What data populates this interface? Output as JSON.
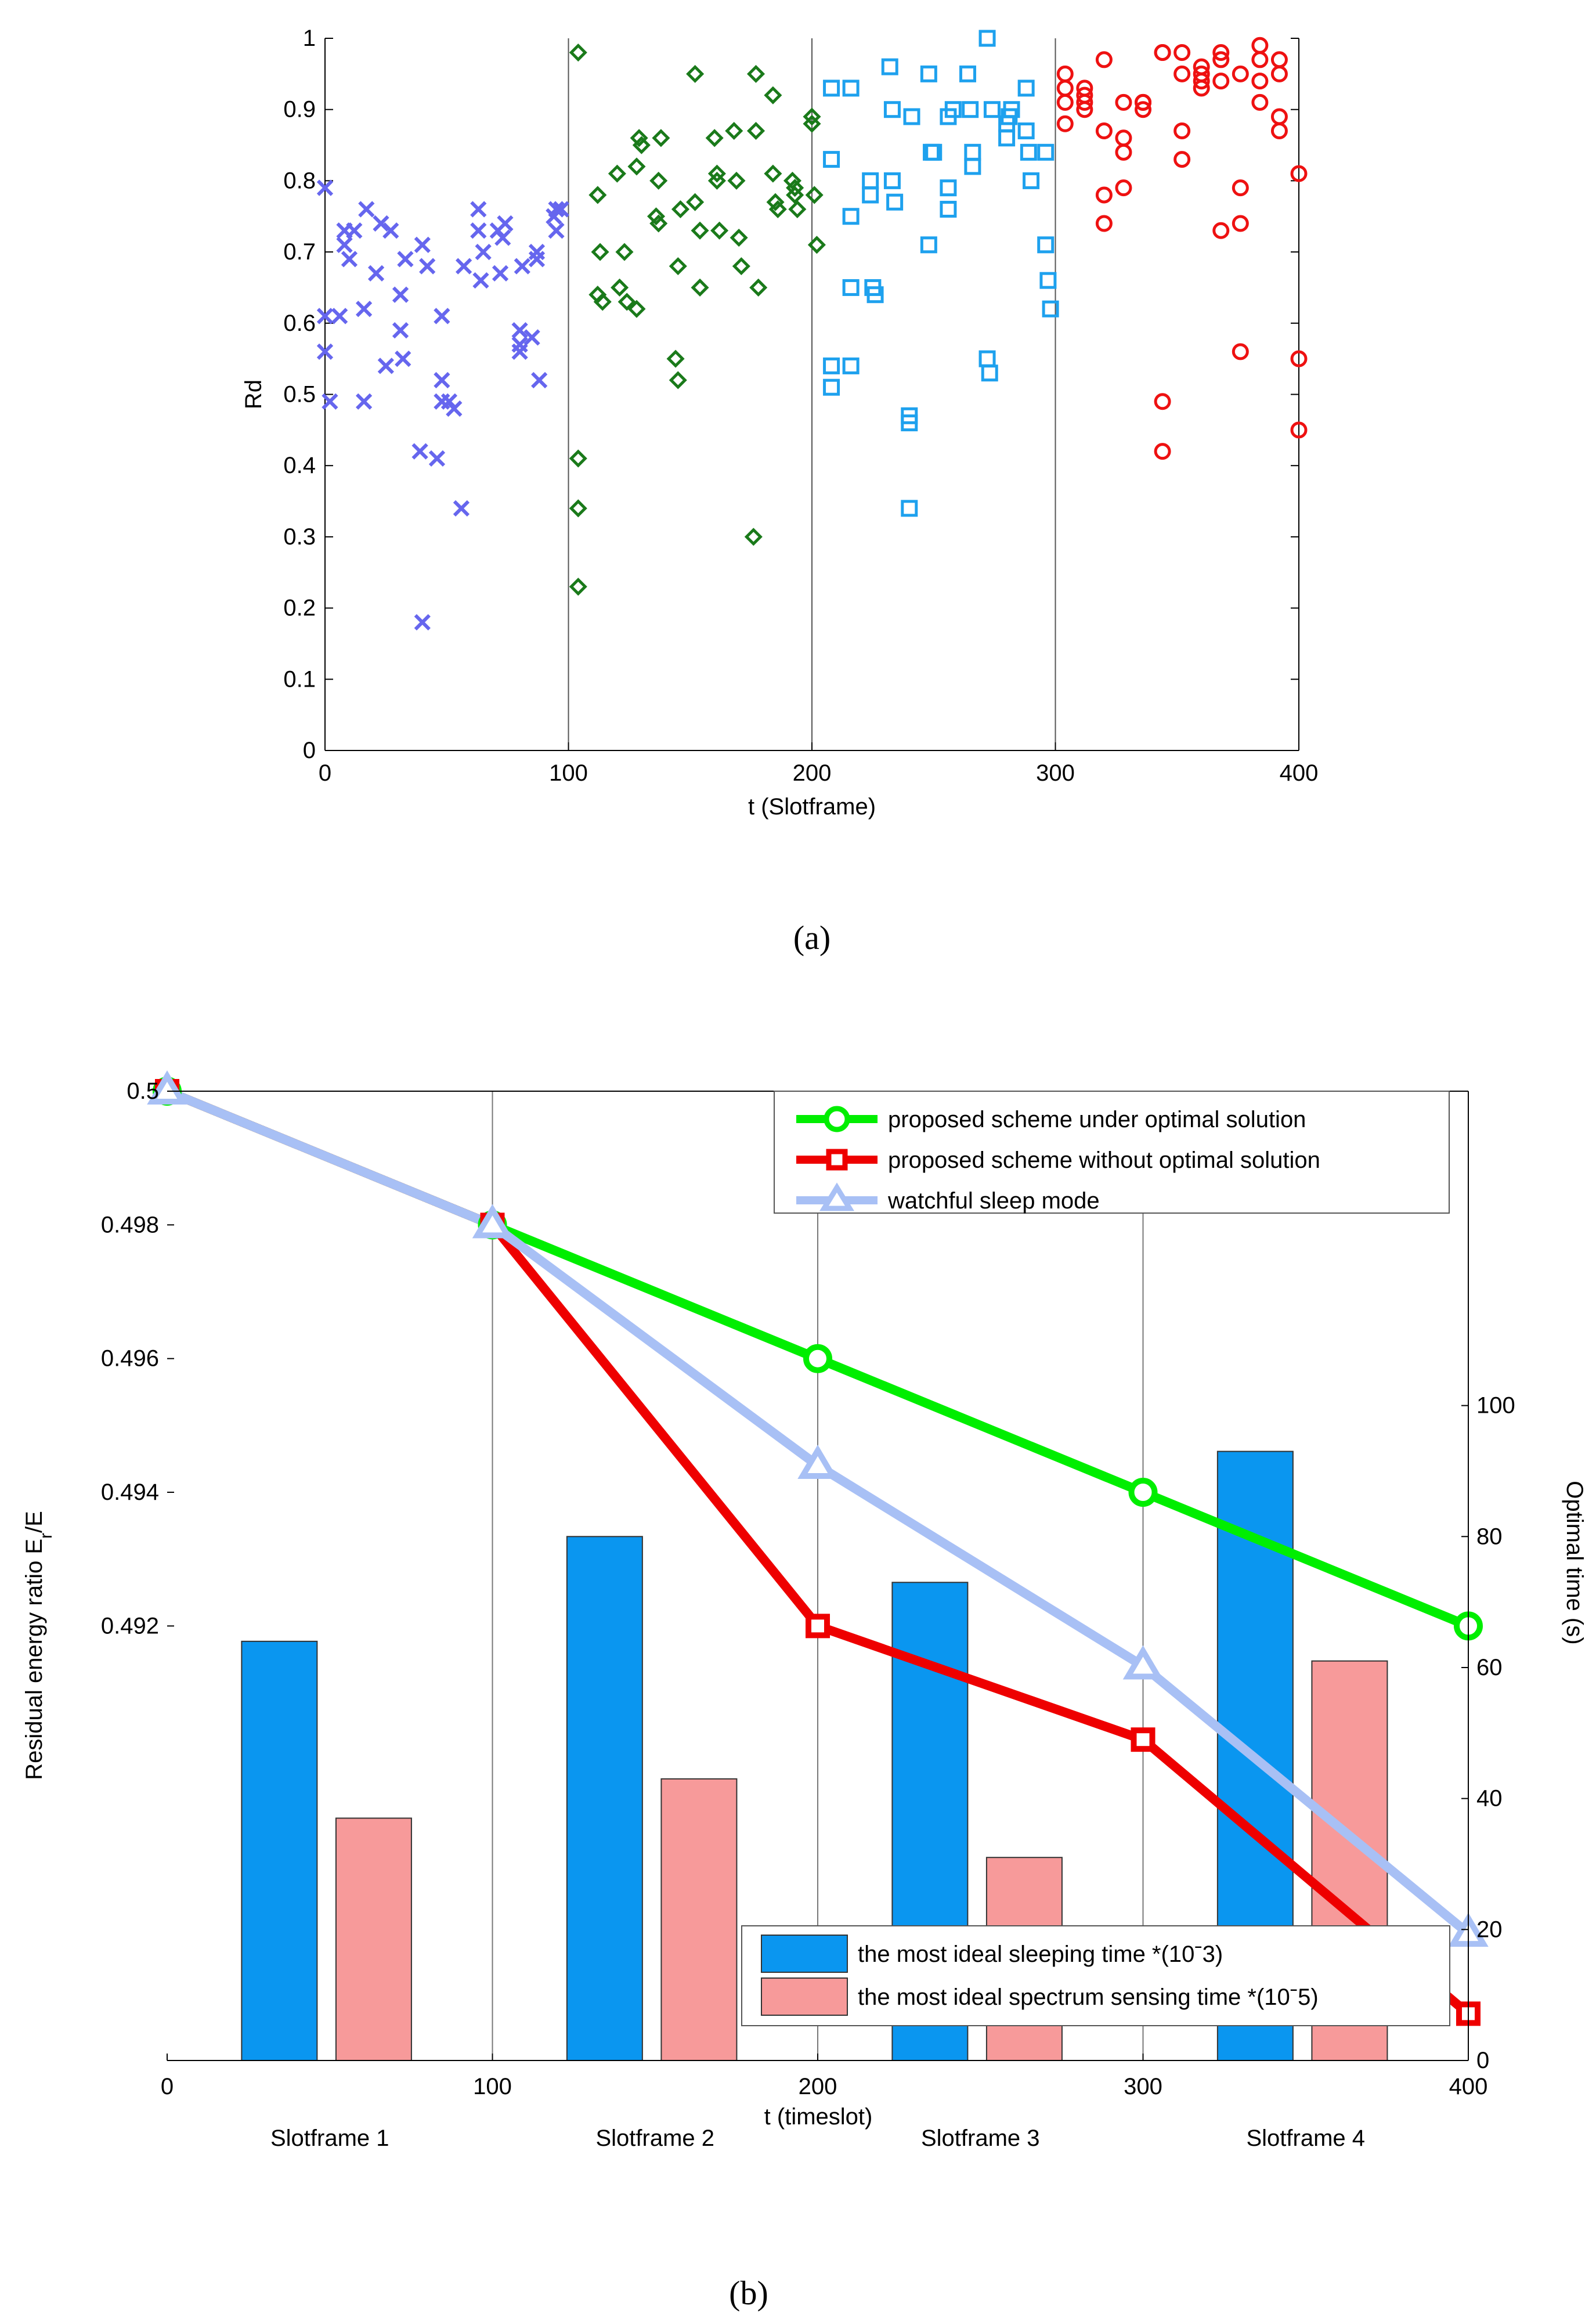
{
  "chart_data": [
    {
      "type": "scatter",
      "caption": "(a)",
      "xlabel": "t (Slotframe)",
      "ylabel": "Rd",
      "xlim": [
        0,
        400
      ],
      "ylim": [
        0,
        1
      ],
      "xticks": [
        0,
        100,
        200,
        300,
        400
      ],
      "yticks": [
        0,
        0.1,
        0.2,
        0.3,
        0.4,
        0.5,
        0.6,
        0.7,
        0.8,
        0.9,
        1
      ],
      "vertical_lines": [
        100,
        200,
        300,
        400
      ],
      "series": [
        {
          "color": "#6666ee",
          "marker": "x",
          "x": [
            0,
            0,
            0,
            2,
            6,
            8,
            8,
            10,
            12,
            16,
            16,
            17,
            21,
            23,
            25,
            27,
            31,
            31,
            32,
            33,
            39,
            40,
            40,
            42,
            46,
            48,
            48,
            48,
            51,
            53,
            56,
            57,
            63,
            63,
            64,
            65,
            71,
            72,
            73,
            74,
            80,
            80,
            80,
            81,
            85,
            87,
            87,
            88,
            94,
            95,
            95,
            97
          ],
          "y": [
            0.79,
            0.61,
            0.56,
            0.49,
            0.61,
            0.73,
            0.71,
            0.69,
            0.73,
            0.49,
            0.62,
            0.76,
            0.67,
            0.74,
            0.54,
            0.73,
            0.64,
            0.59,
            0.55,
            0.69,
            0.42,
            0.18,
            0.71,
            0.68,
            0.41,
            0.49,
            0.61,
            0.52,
            0.49,
            0.48,
            0.34,
            0.68,
            0.76,
            0.73,
            0.66,
            0.7,
            0.73,
            0.67,
            0.72,
            0.74,
            0.57,
            0.56,
            0.59,
            0.68,
            0.58,
            0.7,
            0.69,
            0.52,
            0.75,
            0.76,
            0.73,
            0.76
          ]
        },
        {
          "color": "#1a7a1a",
          "marker": "diamond",
          "x": [
            104,
            104,
            104,
            104,
            112,
            112,
            113,
            114,
            120,
            121,
            123,
            124,
            128,
            128,
            129,
            130,
            136,
            137,
            137,
            138,
            144,
            145,
            145,
            146,
            152,
            152,
            154,
            154,
            160,
            161,
            161,
            162,
            168,
            169,
            170,
            171,
            176,
            177,
            177,
            178,
            184,
            184,
            185,
            186,
            192,
            193,
            193,
            194,
            200,
            200,
            201,
            202
          ],
          "y": [
            0.98,
            0.41,
            0.34,
            0.23,
            0.78,
            0.64,
            0.7,
            0.63,
            0.81,
            0.65,
            0.7,
            0.63,
            0.62,
            0.82,
            0.86,
            0.85,
            0.75,
            0.74,
            0.8,
            0.86,
            0.55,
            0.52,
            0.68,
            0.76,
            0.95,
            0.77,
            0.73,
            0.65,
            0.86,
            0.8,
            0.81,
            0.73,
            0.87,
            0.8,
            0.72,
            0.68,
            0.3,
            0.95,
            0.87,
            0.65,
            0.92,
            0.81,
            0.77,
            0.76,
            0.8,
            0.79,
            0.78,
            0.76,
            0.89,
            0.88,
            0.78,
            0.71
          ]
        },
        {
          "color": "#1ea1ee",
          "marker": "square",
          "x": [
            208,
            208,
            208,
            208,
            216,
            216,
            216,
            216,
            224,
            224,
            225,
            226,
            232,
            233,
            233,
            234,
            240,
            240,
            240,
            241,
            248,
            248,
            249,
            250,
            256,
            256,
            256,
            258,
            264,
            265,
            266,
            266,
            272,
            272,
            273,
            274,
            280,
            280,
            281,
            282,
            288,
            288,
            289,
            290,
            296,
            296,
            297,
            298
          ],
          "y": [
            0.93,
            0.83,
            0.54,
            0.51,
            0.93,
            0.75,
            0.65,
            0.54,
            0.8,
            0.78,
            0.65,
            0.64,
            0.96,
            0.9,
            0.8,
            0.77,
            0.47,
            0.46,
            0.34,
            0.89,
            0.95,
            0.71,
            0.84,
            0.84,
            0.89,
            0.79,
            0.76,
            0.9,
            0.95,
            0.9,
            0.84,
            0.82,
            1.0,
            0.55,
            0.53,
            0.9,
            0.88,
            0.86,
            0.89,
            0.9,
            0.93,
            0.87,
            0.84,
            0.8,
            0.84,
            0.71,
            0.66,
            0.62
          ]
        },
        {
          "color": "#ee1111",
          "marker": "circle",
          "x": [
            304,
            304,
            304,
            304,
            312,
            312,
            312,
            312,
            320,
            320,
            320,
            320,
            328,
            328,
            328,
            328,
            336,
            336,
            336,
            336,
            344,
            344,
            344,
            344,
            352,
            352,
            352,
            352,
            360,
            360,
            360,
            360,
            368,
            368,
            368,
            368,
            376,
            376,
            376,
            376,
            384,
            384,
            384,
            384,
            392,
            392,
            392,
            392,
            400,
            400,
            400
          ],
          "y": [
            0.95,
            0.93,
            0.91,
            0.88,
            0.93,
            0.92,
            0.9,
            0.91,
            0.97,
            0.87,
            0.78,
            0.74,
            0.91,
            0.86,
            0.84,
            0.79,
            0.91,
            0.91,
            0.9,
            0.91,
            0.98,
            0.49,
            0.42,
            0.98,
            0.98,
            0.87,
            0.83,
            0.95,
            0.96,
            0.95,
            0.94,
            0.93,
            0.98,
            0.97,
            0.73,
            0.94,
            0.95,
            0.79,
            0.74,
            0.56,
            0.99,
            0.97,
            0.94,
            0.91,
            0.97,
            0.95,
            0.89,
            0.87,
            0.81,
            0.55,
            0.45
          ]
        }
      ]
    },
    {
      "type": "bar+line",
      "caption": "(b)",
      "xlabel": "t (timeslot)",
      "ylabel_left_parts": [
        "Residual energy ratio  E",
        "r",
        "/E"
      ],
      "ylabel_right": "Optimal time (s)",
      "xlim": [
        0,
        400
      ],
      "xticks": [
        0,
        100,
        200,
        300,
        400
      ],
      "yticks_left": [
        "0.5",
        "0.498",
        "0.496",
        "0.494",
        "0.492"
      ],
      "ylim_left": [
        0.4855,
        0.5
      ],
      "yticks_right": [
        0,
        20,
        40,
        60,
        80,
        100
      ],
      "ylim_right": [
        0,
        148
      ],
      "vertical_lines": [
        100,
        200,
        300,
        400
      ],
      "slotframe_labels": [
        "Slotframe 1",
        "Slotframe 2",
        "Slotframe 3",
        "Slotframe 4"
      ],
      "line_series": [
        {
          "name": "proposed  scheme under optimal solution",
          "color": "#00ee00",
          "marker": "circle",
          "x": [
            0,
            100,
            200,
            300,
            400
          ],
          "y": [
            0.5,
            0.498,
            0.496,
            0.494,
            0.492
          ]
        },
        {
          "name": "proposed  scheme without optimal solution",
          "color": "#ee0000",
          "marker": "square",
          "x": [
            0,
            100,
            200,
            300,
            400
          ],
          "y": [
            0.5,
            0.498,
            0.492,
            0.4903,
            0.4862
          ]
        },
        {
          "name": "watchful sleep mode",
          "color": "#a8c0f5",
          "marker": "triangle",
          "x": [
            0,
            100,
            200,
            300,
            400
          ],
          "y": [
            0.5,
            0.498,
            0.4944,
            0.4914,
            0.4874
          ]
        }
      ],
      "bar_categories": [
        "Slotframe 1",
        "Slotframe 2",
        "Slotframe 3",
        "Slotframe 4"
      ],
      "bar_series": [
        {
          "name": "the most ideal sleeping time *(10ˉ3)",
          "color": "#0a96f0",
          "values": [
            64,
            80,
            73,
            93
          ]
        },
        {
          "name": "the most ideal spectrum sensing time *(10ˉ5)",
          "color": "#f79a9a",
          "values": [
            37,
            43,
            31,
            61
          ]
        }
      ],
      "legend_position": "top-right (lines), bottom-right (bars)"
    }
  ]
}
